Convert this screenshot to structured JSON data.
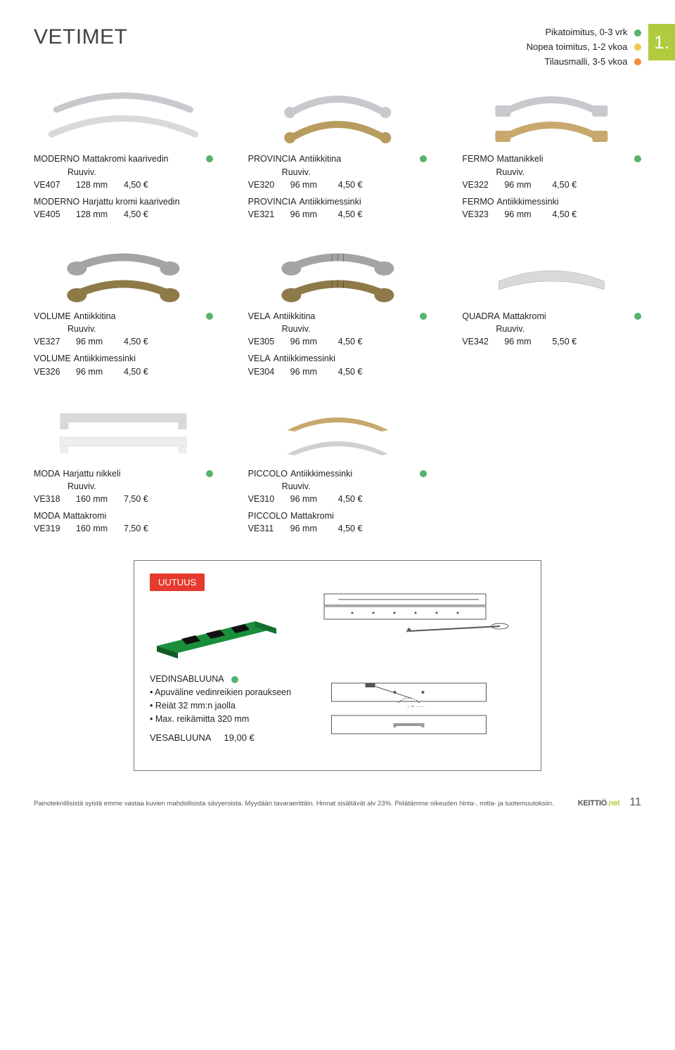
{
  "colors": {
    "green": "#55b36a",
    "yellow": "#f1c94e",
    "orange": "#f08c3a",
    "red": "#e63a2e",
    "limegreen": "#b0cb3d",
    "chrome": "#c7c9cc",
    "chrome2": "#d8d9da",
    "brass": "#b89b5e",
    "brassDark": "#8e7a49",
    "silverDark": "#a3a4a6"
  },
  "section_title": "VETIMET",
  "index_label": "1.",
  "legend": [
    {
      "text": "Pikatoimitus, 0-3 vrk",
      "color": "#55b36a"
    },
    {
      "text": "Nopea toimitus, 1-2 vkoa",
      "color": "#f1c94e"
    },
    {
      "text": "Tilausmalli, 3-5 vkoa",
      "color": "#f08c3a"
    }
  ],
  "rows": [
    {
      "cells": [
        {
          "image": {
            "type": "double-arc",
            "colors": [
              "#c7c9cc",
              "#d8d9da"
            ]
          },
          "products": [
            {
              "name": "MODERNO",
              "variant": "Mattakromi kaarivedin",
              "sub": "Ruuviv.",
              "dot": "#55b36a",
              "sku": "VE407",
              "size": "128 mm",
              "price": "4,50 €"
            },
            {
              "name": "MODERNO",
              "variant": "Harjattu kromi kaarivedin",
              "sku": "VE405",
              "size": "128 mm",
              "price": "4,50 €"
            }
          ]
        },
        {
          "image": {
            "type": "double-arc-knob",
            "colors": [
              "#c7c9cc",
              "#b89b5e"
            ]
          },
          "products": [
            {
              "name": "PROVINCIA",
              "variant": "Antiikkitina",
              "sub": "Ruuviv.",
              "dot": "#55b36a",
              "sku": "VE320",
              "size": "96 mm",
              "price": "4,50 €"
            },
            {
              "name": "PROVINCIA",
              "variant": "Antiikkimessinki",
              "sku": "VE321",
              "size": "96 mm",
              "price": "4,50 €"
            }
          ]
        },
        {
          "image": {
            "type": "double-plate",
            "colors": [
              "#c7c9cc",
              "#c9a86e"
            ]
          },
          "products": [
            {
              "name": "FERMO",
              "variant": "Mattanikkeli",
              "sub": "Ruuviv.",
              "dot": "#55b36a",
              "sku": "VE322",
              "size": "96 mm",
              "price": "4,50 €"
            },
            {
              "name": "FERMO",
              "variant": "Antiikkimessinki",
              "sku": "VE323",
              "size": "96 mm",
              "price": "4,50 €"
            }
          ]
        }
      ]
    },
    {
      "cells": [
        {
          "image": {
            "type": "double-rose",
            "colors": [
              "#a3a4a6",
              "#8e7a49"
            ]
          },
          "products": [
            {
              "name": "VOLUME",
              "variant": "Antiikkitina",
              "sub": "Ruuviv.",
              "dot": "#55b36a",
              "sku": "VE327",
              "size": "96 mm",
              "price": "4,50 €"
            },
            {
              "name": "VOLUME",
              "variant": "Antiikkimessinki",
              "sku": "VE326",
              "size": "96 mm",
              "price": "4,50 €"
            }
          ]
        },
        {
          "image": {
            "type": "double-rose-ribbed",
            "colors": [
              "#a3a4a6",
              "#8e7a49"
            ]
          },
          "products": [
            {
              "name": "VELA",
              "variant": "Antiikkitina",
              "sub": "Ruuviv.",
              "dot": "#55b36a",
              "sku": "VE305",
              "size": "96 mm",
              "price": "4,50 €"
            },
            {
              "name": "VELA",
              "variant": "Antiikkimessinki",
              "sku": "VE304",
              "size": "96 mm",
              "price": "4,50 €"
            }
          ]
        },
        {
          "image": {
            "type": "flat-arc",
            "colors": [
              "#d8d9da"
            ]
          },
          "products": [
            {
              "name": "QUADRA",
              "variant": "Mattakromi",
              "sub": "Ruuviv.",
              "dot": "#55b36a",
              "sku": "VE342",
              "size": "96 mm",
              "price": "5,50 €"
            }
          ]
        }
      ]
    },
    {
      "cells": [
        {
          "image": {
            "type": "double-bar",
            "colors": [
              "#d8d9da",
              "#eeeeee"
            ]
          },
          "products": [
            {
              "name": "MODA",
              "variant": "Harjattu nikkeli",
              "sub": "Ruuviv.",
              "dot": "#55b36a",
              "sku": "VE318",
              "size": "160 mm",
              "price": "7,50 €"
            },
            {
              "name": "MODA",
              "variant": "Mattakromi",
              "sku": "VE319",
              "size": "160 mm",
              "price": "7,50 €"
            }
          ]
        },
        {
          "image": {
            "type": "double-arc-thin",
            "colors": [
              "#c9a86e",
              "#cfd0d2"
            ]
          },
          "products": [
            {
              "name": "PICCOLO",
              "variant": "Antiikkimessinki",
              "sub": "Ruuviv.",
              "dot": "#55b36a",
              "sku": "VE310",
              "size": "96 mm",
              "price": "4,50 €"
            },
            {
              "name": "PICCOLO",
              "variant": "Mattakromi",
              "sku": "VE311",
              "size": "96 mm",
              "price": "4,50 €"
            }
          ]
        },
        {
          "empty": true
        }
      ]
    }
  ],
  "uutuus": {
    "tag": "UUTUUS",
    "title": "VEDINSABLUUNA",
    "dot": "#55b36a",
    "bullets": [
      "Apuväline vedinreikien poraukseen",
      "Reiät 32 mm:n jaolla",
      "Max. reikämitta 320 mm"
    ],
    "dimlabel": "ø 5 mm",
    "sku": "VESABLUUNA",
    "price": "19,00 €"
  },
  "footer": {
    "disclaimer": "Painoteknillisistä syistä emme vastaa kuvien mahdollisista sävyeroista. Myydään tavaraerittäin. Hinnat sisältävät alv 23%. Pidätämme oikeuden hinta-, mitta- ja tuotemuutoksiin.",
    "logo_a": "KEITTIÖ",
    "logo_b": ".net",
    "page": "11"
  }
}
